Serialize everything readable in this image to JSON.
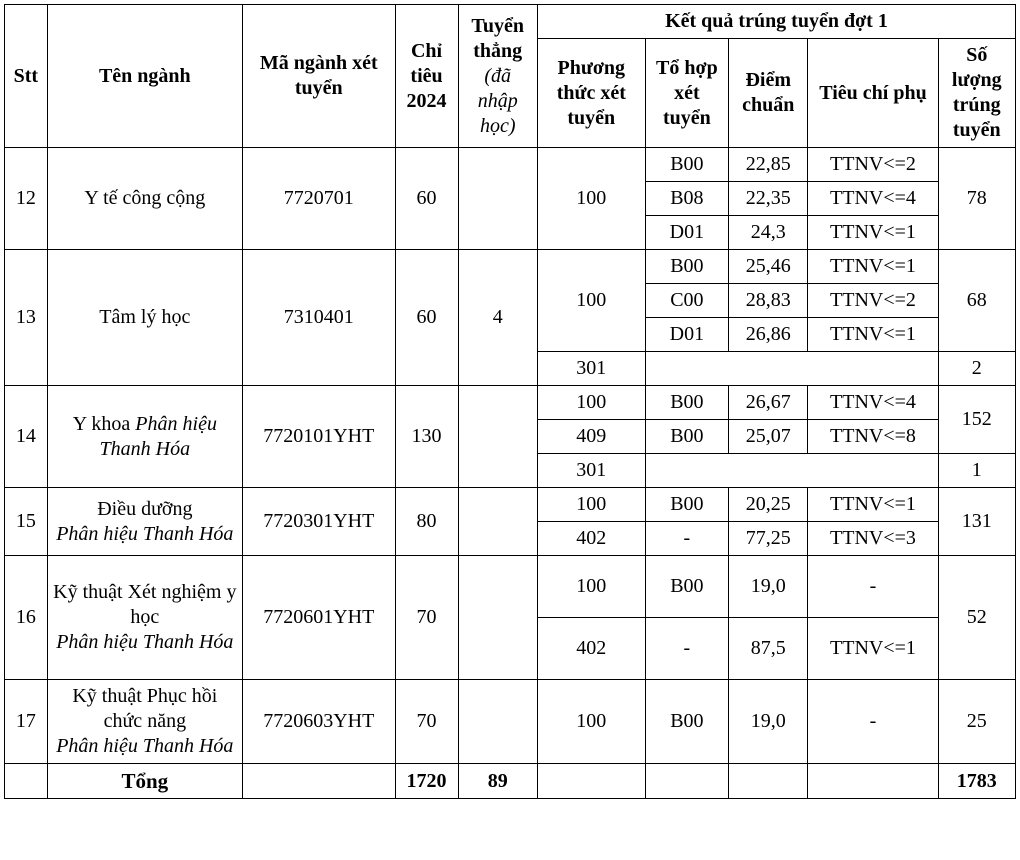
{
  "headers": {
    "stt": "Stt",
    "major": "Tên ngành",
    "code": "Mã ngành xét tuyển",
    "quota": "Chỉ tiêu 2024",
    "direct_top": "Tuyển thẳng",
    "direct_sub": "(đã nhập học)",
    "result_group": "Kết quả trúng tuyển đợt 1",
    "method": "Phương thức xét tuyển",
    "combo": "Tổ hợp xét tuyển",
    "score": "Điểm chuẩn",
    "criteria": "Tiêu chí phụ",
    "count": "Số lượng trúng tuyển"
  },
  "rows": {
    "r12": {
      "stt": "12",
      "name": "Y tế công cộng",
      "code": "7720701",
      "quota": "60",
      "direct": "",
      "method": "100",
      "count": "78",
      "sub": [
        {
          "combo": "B00",
          "score": "22,85",
          "crit": "TTNV<=2"
        },
        {
          "combo": "B08",
          "score": "22,35",
          "crit": "TTNV<=4"
        },
        {
          "combo": "D01",
          "score": "24,3",
          "crit": "TTNV<=1"
        }
      ]
    },
    "r13": {
      "stt": "13",
      "name": "Tâm lý học",
      "code": "7310401",
      "quota": "60",
      "direct": "4",
      "method1": "100",
      "count1": "68",
      "sub1": [
        {
          "combo": "B00",
          "score": "25,46",
          "crit": "TTNV<=1"
        },
        {
          "combo": "C00",
          "score": "28,83",
          "crit": "TTNV<=2"
        },
        {
          "combo": "D01",
          "score": "26,86",
          "crit": "TTNV<=1"
        }
      ],
      "method2": "301",
      "count2": "2"
    },
    "r14": {
      "stt": "14",
      "name_a": "Y khoa",
      "name_b": "Phân hiệu Thanh Hóa",
      "code": "7720101YHT",
      "quota": "130",
      "direct": "",
      "method1": "100",
      "combo1": "B00",
      "score1": "26,67",
      "crit1": "TTNV<=4",
      "method2": "409",
      "combo2": "B00",
      "score2": "25,07",
      "crit2": "TTNV<=8",
      "count12": "152",
      "method3": "301",
      "count3": "1"
    },
    "r15": {
      "stt": "15",
      "name_a": "Điều dưỡng",
      "name_b": "Phân hiệu Thanh Hóa",
      "code": "7720301YHT",
      "quota": "80",
      "direct": "",
      "method1": "100",
      "combo1": "B00",
      "score1": "20,25",
      "crit1": "TTNV<=1",
      "method2": "402",
      "combo2": "-",
      "score2": "77,25",
      "crit2": "TTNV<=3",
      "count": "131"
    },
    "r16": {
      "stt": "16",
      "name_a": "Kỹ thuật Xét nghiệm y học",
      "name_b": "Phân hiệu Thanh Hóa",
      "code": "7720601YHT",
      "quota": "70",
      "direct": "",
      "method1": "100",
      "combo1": "B00",
      "score1": "19,0",
      "crit1": "-",
      "method2": "402",
      "combo2": "-",
      "score2": "87,5",
      "crit2": "TTNV<=1",
      "count": "52"
    },
    "r17": {
      "stt": "17",
      "name_a": "Kỹ thuật Phục hồi chức năng",
      "name_b": "Phân hiệu Thanh Hóa",
      "code": "7720603YHT",
      "quota": "70",
      "direct": "",
      "method": "100",
      "combo": "B00",
      "score": "19,0",
      "crit": "-",
      "count": "25"
    }
  },
  "total": {
    "label": "Tổng",
    "quota": "1720",
    "direct": "89",
    "count": "1783"
  }
}
